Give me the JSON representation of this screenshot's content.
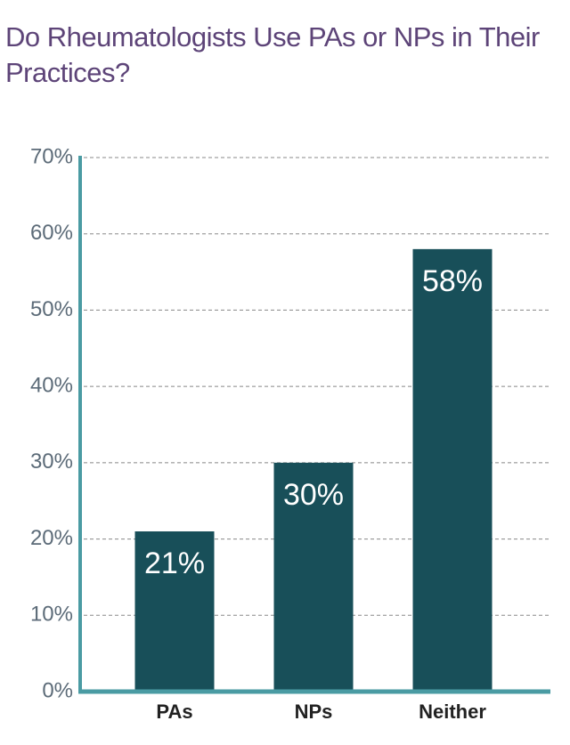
{
  "chart_data": {
    "type": "bar",
    "title": "Do Rheumatologists Use PAs or NPs in Their Practices?",
    "categories": [
      "PAs",
      "NPs",
      "Neither"
    ],
    "values": [
      21,
      30,
      58
    ],
    "value_labels": [
      "21%",
      "30%",
      "58%"
    ],
    "color": "#184f59",
    "ylim": [
      0,
      70
    ],
    "yticks": [
      {
        "value": 0,
        "label": "0%"
      },
      {
        "value": 10,
        "label": "10%"
      },
      {
        "value": 20,
        "label": "20%"
      },
      {
        "value": 30,
        "label": "30%"
      },
      {
        "value": 40,
        "label": "40%"
      },
      {
        "value": 50,
        "label": "50%"
      },
      {
        "value": 60,
        "label": "60%"
      },
      {
        "value": 70,
        "label": "70%"
      }
    ],
    "grid": true
  }
}
